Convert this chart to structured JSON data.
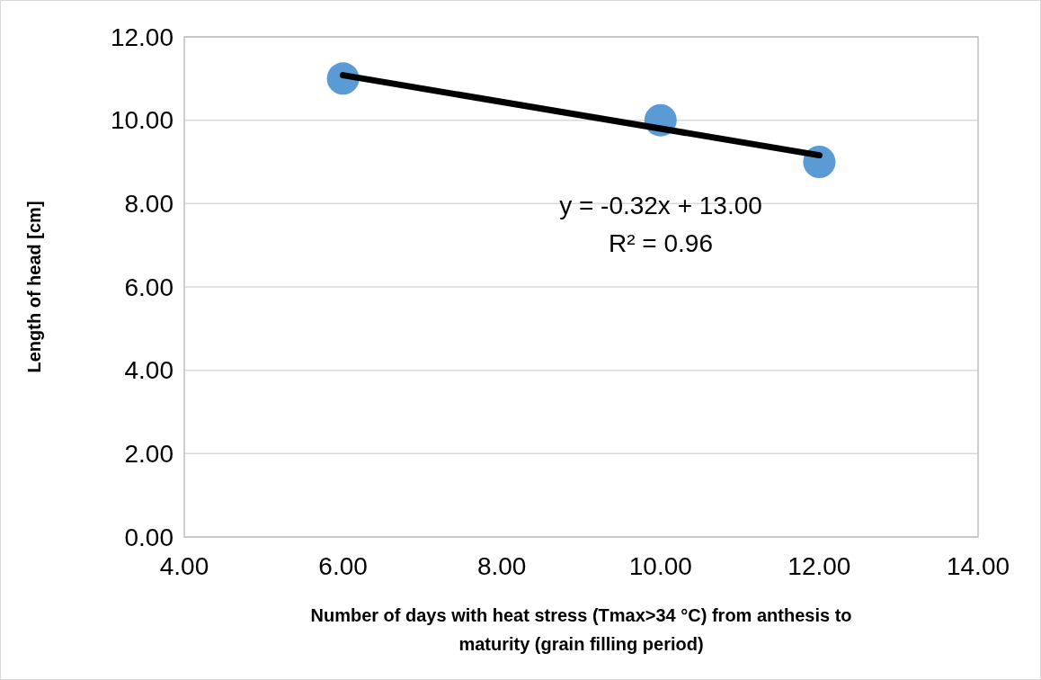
{
  "chart_data": {
    "type": "scatter",
    "xlabel": "Number of days with heat stress (Tmax>34 °C) from anthesis to maturity (grain filling period)",
    "ylabel": "Length of head [cm]",
    "xlim": [
      4,
      14
    ],
    "xticks": [
      {
        "value": 4,
        "label": "4.00"
      },
      {
        "value": 6,
        "label": "6.00"
      },
      {
        "value": 8,
        "label": "8.00"
      },
      {
        "value": 10,
        "label": "10.00"
      },
      {
        "value": 12,
        "label": "12.00"
      },
      {
        "value": 14,
        "label": "14.00"
      }
    ],
    "ylim": [
      0,
      12
    ],
    "yticks": [
      {
        "value": 0,
        "label": "0.00"
      },
      {
        "value": 2,
        "label": "2.00"
      },
      {
        "value": 4,
        "label": "4.00"
      },
      {
        "value": 6,
        "label": "6.00"
      },
      {
        "value": 8,
        "label": "8.00"
      },
      {
        "value": 10,
        "label": "10.00"
      },
      {
        "value": 12,
        "label": "12.00"
      }
    ],
    "grid": "y",
    "marker": "circle",
    "series": [
      {
        "color": "#5b9bd5",
        "x": [
          6,
          10,
          12
        ],
        "values": [
          11,
          10,
          9
        ]
      },
      {
        "type": "line",
        "color": "#000000",
        "x": [
          6,
          12
        ],
        "values": [
          11.08,
          9.16
        ],
        "marker": "none"
      }
    ],
    "annotations": [
      "y = -0.32x + 13.00",
      "R² = 0.96"
    ]
  }
}
